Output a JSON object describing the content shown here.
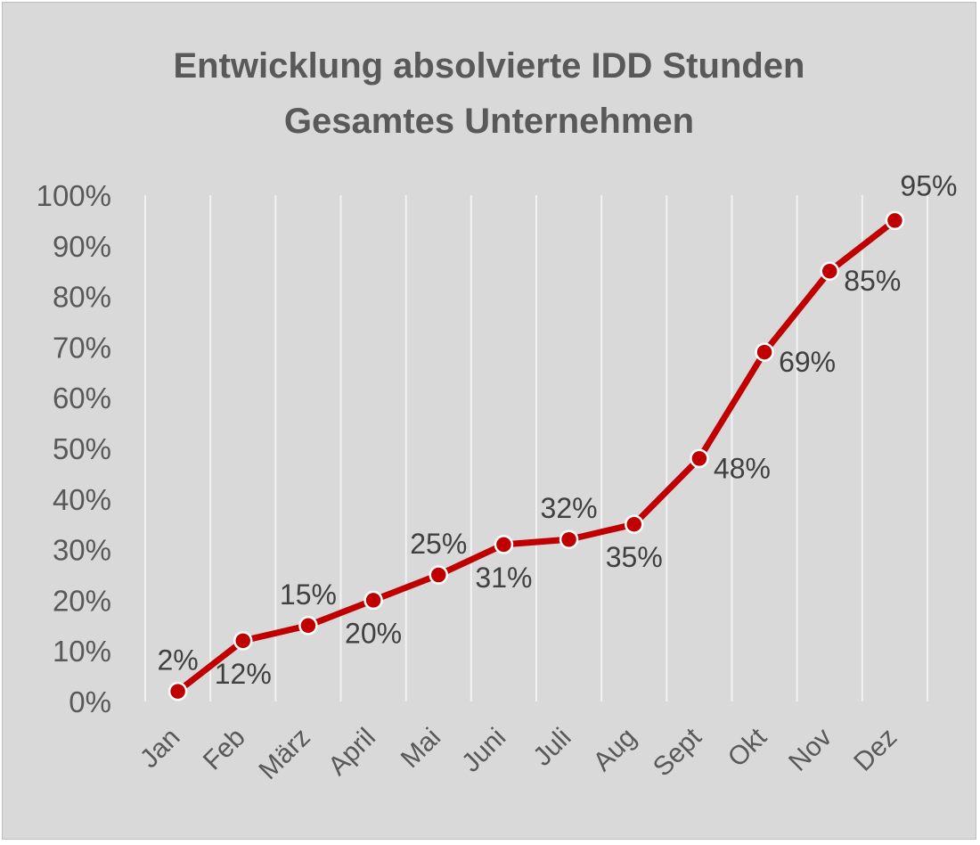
{
  "chart_data": {
    "type": "line",
    "title": [
      "Entwicklung absolvierte IDD Stunden",
      "Gesamtes Unternehmen"
    ],
    "categories": [
      "Jan",
      "Feb",
      "März",
      "April",
      "Mai",
      "Juni",
      "Juli",
      "Aug",
      "Sept",
      "Okt",
      "Nov",
      "Dez"
    ],
    "series": [
      {
        "values": [
          2,
          12,
          15,
          20,
          25,
          31,
          32,
          35,
          48,
          69,
          85,
          95
        ],
        "labels": [
          "2%",
          "12%",
          "15%",
          "20%",
          "25%",
          "31%",
          "32%",
          "35%",
          "48%",
          "69%",
          "85%",
          "95%"
        ],
        "color": "#c00000"
      }
    ],
    "yticks": [
      "0%",
      "10%",
      "20%",
      "30%",
      "40%",
      "50%",
      "60%",
      "70%",
      "80%",
      "90%",
      "100%"
    ],
    "ylim": [
      0,
      100
    ],
    "grid": "vertical",
    "legend": "none",
    "background": "#d9d9d9"
  }
}
